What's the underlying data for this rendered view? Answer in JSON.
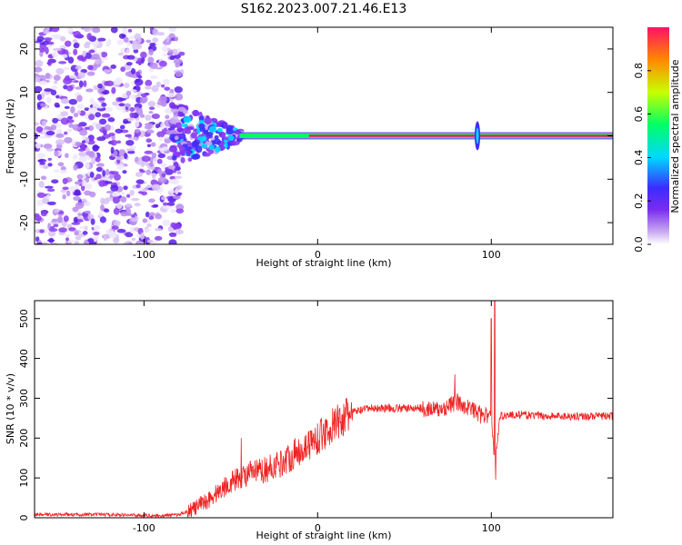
{
  "title": "S162.2023.007.21.46.E13",
  "colors": {
    "snr_line": "#ee2222",
    "axis": "#000000"
  },
  "chart_data": [
    {
      "type": "heatmap",
      "xlabel": "Height of straight line (km)",
      "ylabel": "Frequency (Hz)",
      "xlim": [
        -163,
        170
      ],
      "ylim": [
        -25,
        25
      ],
      "x_ticks": [
        -100,
        0,
        100
      ],
      "y_ticks": [
        -20,
        -10,
        0,
        10,
        20
      ],
      "x_tick_labels": [
        "-100",
        "0",
        "100"
      ],
      "y_tick_labels": [
        "-20",
        "-10",
        "0",
        "10",
        "20"
      ],
      "colorbar": {
        "label": "Normalized spectral amplitude",
        "range": [
          0,
          1
        ],
        "ticks": [
          0.0,
          0.2,
          0.4,
          0.6,
          0.8
        ],
        "tick_labels": [
          "0.0",
          "0.2",
          "0.4",
          "0.6",
          "0.8"
        ],
        "colormap": [
          "#ffffff",
          "#c8a8f0",
          "#7a2cf0",
          "#3b2cff",
          "#00d8ff",
          "#00ff66",
          "#c8ff00",
          "#ff8800",
          "#ff1166"
        ]
      },
      "features": [
        {
          "name": "noise",
          "x_range": [
            -163,
            -80
          ],
          "freq_spread": 25,
          "amplitude": 0.25
        },
        {
          "name": "transition",
          "x_range": [
            -85,
            -45
          ],
          "freq_spread": 8,
          "amplitude": 0.55
        },
        {
          "name": "signal",
          "x_range": [
            -45,
            170
          ],
          "frequency": 0,
          "amplitude": 0.9
        },
        {
          "name": "spike",
          "x": 92,
          "freq_spread": 6,
          "amplitude": 0.6
        }
      ]
    },
    {
      "type": "line",
      "xlabel": "Height of straight line (km)",
      "ylabel": "SNR (10 * v/v)",
      "xlim": [
        -163,
        170
      ],
      "ylim": [
        0,
        545
      ],
      "x_ticks": [
        -100,
        0,
        100
      ],
      "y_ticks": [
        0,
        100,
        200,
        300,
        400,
        500
      ],
      "x_tick_labels": [
        "-100",
        "0",
        "100"
      ],
      "y_tick_labels": [
        "0",
        "100",
        "200",
        "300",
        "400",
        "500"
      ],
      "series": [
        {
          "x": [
            -163,
            -140,
            -120,
            -100,
            -90,
            -80,
            -70,
            -60,
            -50,
            -40,
            -30,
            -20,
            -10,
            0,
            10,
            20,
            30,
            40,
            50,
            60,
            70,
            75,
            80,
            85,
            90,
            95,
            100,
            102,
            105,
            110,
            120,
            130,
            140,
            150,
            160,
            170
          ],
          "values": [
            8,
            8,
            8,
            6,
            5,
            8,
            25,
            55,
            90,
            110,
            120,
            140,
            170,
            200,
            235,
            265,
            275,
            275,
            275,
            275,
            270,
            280,
            290,
            280,
            270,
            255,
            260,
            130,
            255,
            258,
            258,
            255,
            255,
            255,
            255,
            255
          ],
          "peaks": [
            {
              "x": 100,
              "y": 500
            },
            {
              "x": 102,
              "y": 545
            },
            {
              "x": 102.5,
              "y": 95
            },
            {
              "x": 79,
              "y": 360
            },
            {
              "x": -44,
              "y": 200
            }
          ]
        }
      ]
    }
  ]
}
